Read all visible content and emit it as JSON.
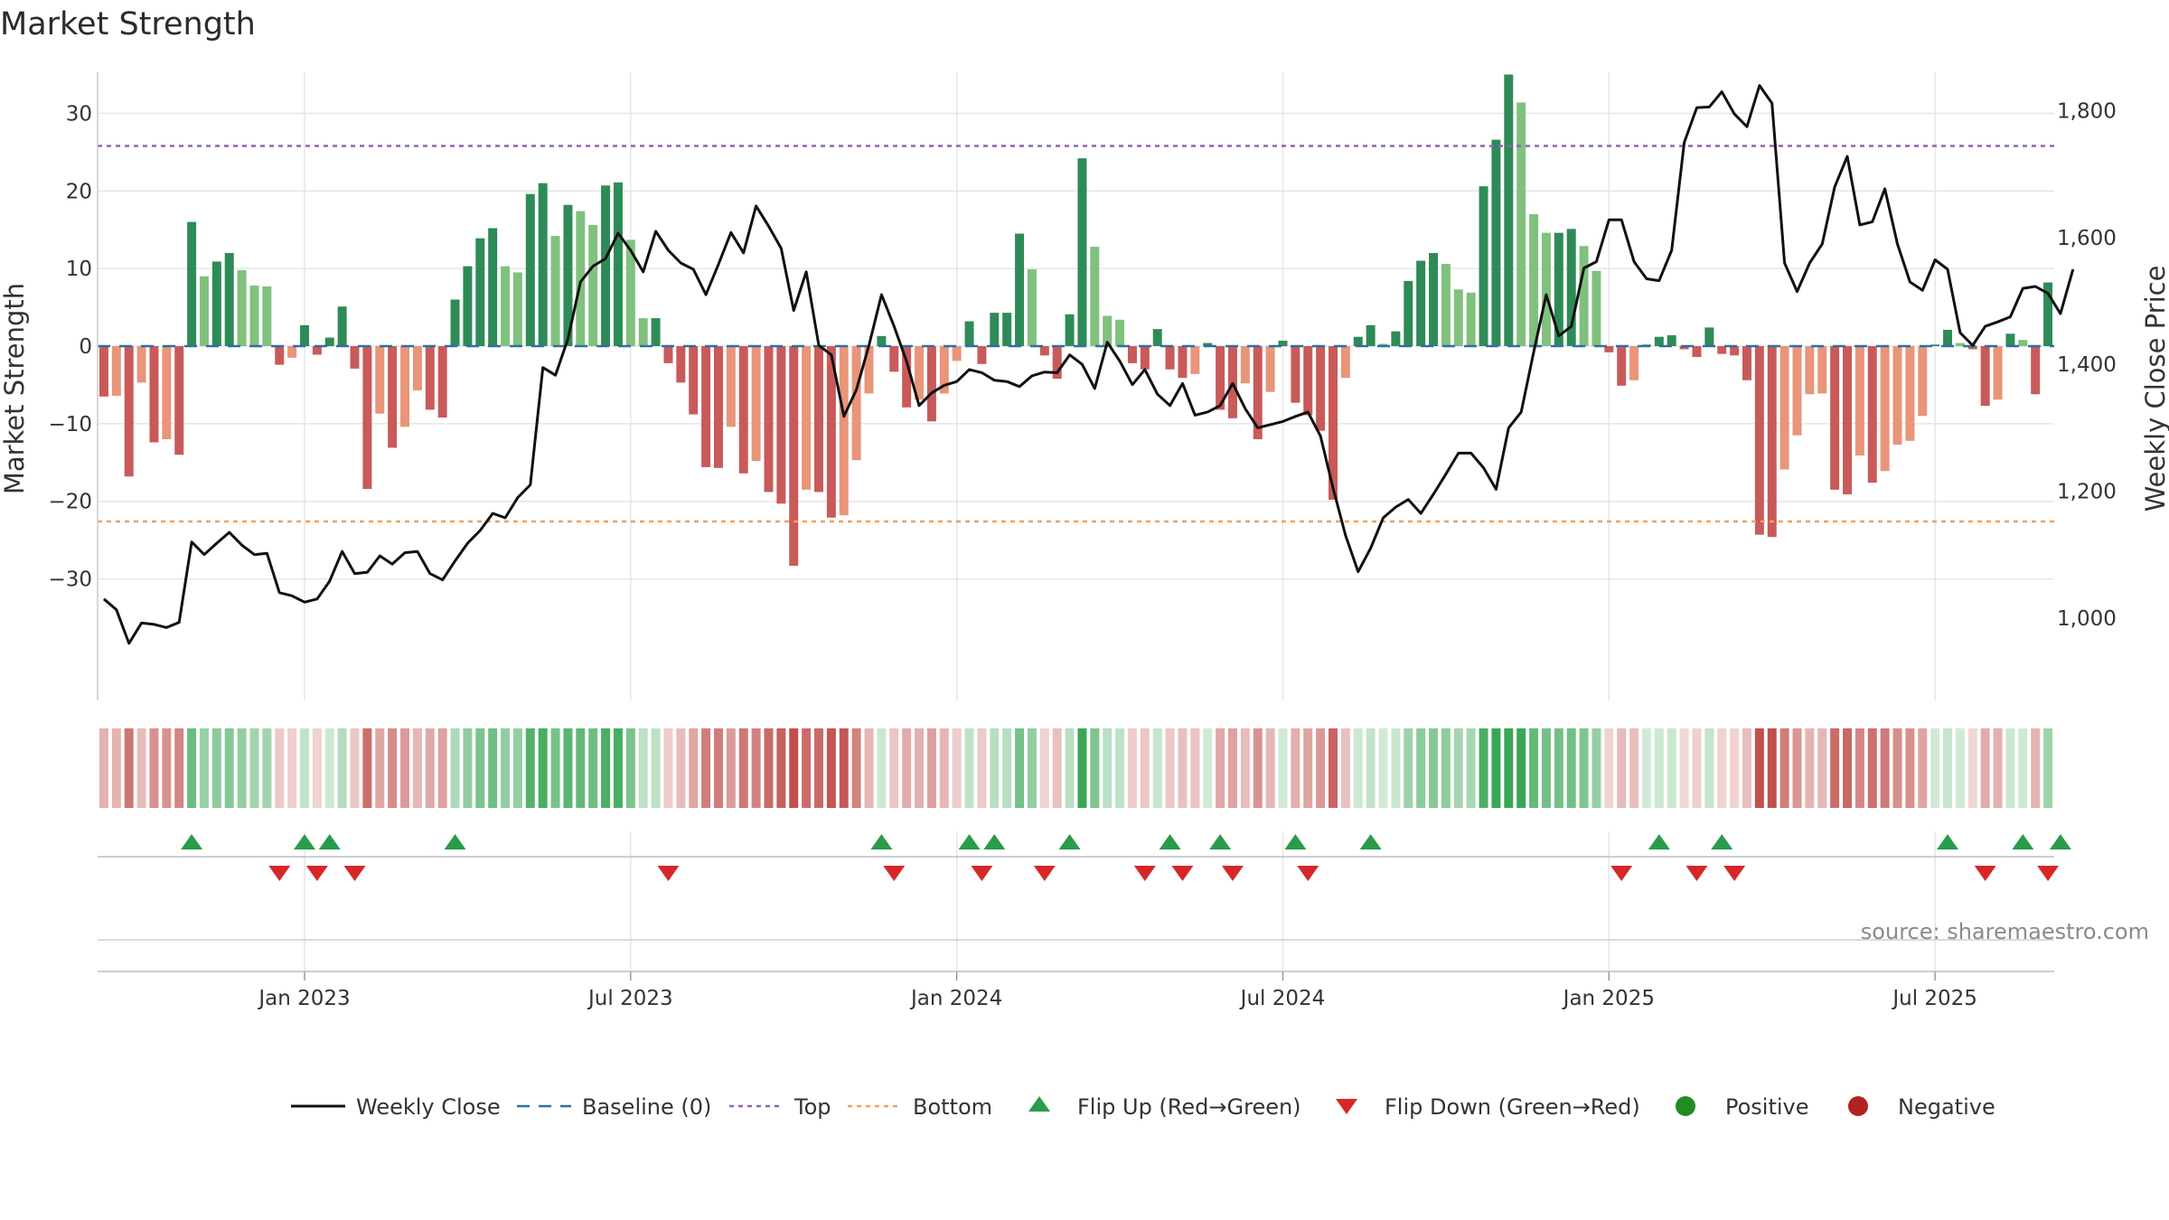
{
  "chart_data": {
    "type": "bar",
    "title": "Market Strength",
    "ylabel_left": "Market Strength",
    "ylabel_right": "Weekly Close Price",
    "source": "source: sharemaestro.com",
    "left_ylim": [
      -37.5,
      37.5
    ],
    "right_ylim": [
      890,
      1895
    ],
    "left_ticks": [
      30,
      20,
      10,
      0,
      -10,
      -20,
      -30
    ],
    "left_tick_labels": [
      "30",
      "20",
      "10",
      "0",
      "−10",
      "−20",
      "−30"
    ],
    "right_ticks": [
      1800,
      1600,
      1400,
      1200,
      1000
    ],
    "right_tick_labels": [
      "1,800",
      "1,600",
      "1,400",
      "1,200",
      "1,000"
    ],
    "x_tick_labels": [
      "Jan 2023",
      "Jul 2023",
      "Jan 2024",
      "Jul 2024",
      "Jan 2025",
      "Jul 2025"
    ],
    "x_tick_weeks": [
      16,
      42,
      68,
      94,
      120,
      146
    ],
    "top_level": 25.8,
    "bottom_level": -22.6,
    "strength": [
      -6.5,
      -6.4,
      -16.8,
      -4.7,
      -12.4,
      -12,
      -14,
      16,
      9,
      10.9,
      12,
      9.8,
      7.8,
      7.7,
      -2.4,
      -1.5,
      2.7,
      -1.1,
      1.1,
      5.1,
      -2.9,
      -18.4,
      -8.7,
      -13.1,
      -10.4,
      -5.7,
      -8.2,
      -9.2,
      6,
      10.3,
      13.9,
      15.2,
      10.3,
      9.5,
      19.6,
      21,
      14.2,
      18.2,
      17.4,
      15.6,
      20.7,
      21.1,
      13.7,
      3.6,
      3.6,
      -2.2,
      -4.7,
      -8.8,
      -15.6,
      -15.7,
      -10.4,
      -16.4,
      -14.8,
      -18.8,
      -20.3,
      -28.3,
      -18.5,
      -18.8,
      -22.1,
      -21.8,
      -14.7,
      -6.1,
      1.3,
      -3.3,
      -7.9,
      -6.9,
      -9.7,
      -6.1,
      -1.9,
      3.2,
      -2.3,
      4.3,
      4.3,
      14.5,
      9.9,
      -1.2,
      -4.2,
      4.1,
      24.2,
      12.8,
      3.9,
      3.4,
      -2.2,
      -3,
      2.2,
      -3,
      -4.1,
      -3.6,
      0.4,
      -8.2,
      -9.3,
      -4.8,
      -12,
      -5.9,
      0.7,
      -7.3,
      -8.9,
      -10.9,
      -19.8,
      -4.1,
      1.2,
      2.7,
      0.3,
      1.9,
      8.4,
      11,
      12,
      10.6,
      7.3,
      6.9,
      20.6,
      26.6,
      35,
      31.4,
      17,
      14.6,
      14.6,
      15.1,
      12.9,
      9.7,
      -0.8,
      -5.1,
      -4.4,
      0.2,
      1.2,
      1.4,
      -0.4,
      -1.4,
      2.4,
      -1,
      -1.2,
      -4.4,
      -24.3,
      -24.6,
      -15.9,
      -11.5,
      -6.2,
      -6.1,
      -18.5,
      -19.1,
      -14.1,
      -17.6,
      -16.1,
      -12.7,
      -12.2,
      -9,
      0.2,
      2.1,
      0.4,
      -0.4,
      -7.7,
      -6.9,
      1.6,
      0.8,
      -6.2,
      8.2
    ],
    "weekly_close": [
      1030,
      1013,
      960,
      992,
      990,
      985,
      993,
      1120,
      1100,
      1118,
      1135,
      1115,
      1100,
      1102,
      1040,
      1035,
      1025,
      1030,
      1058,
      1105,
      1070,
      1072,
      1098,
      1085,
      1103,
      1105,
      1070,
      1060,
      1090,
      1118,
      1138,
      1165,
      1158,
      1190,
      1210,
      1395,
      1383,
      1440,
      1530,
      1555,
      1567,
      1607,
      1580,
      1546,
      1610,
      1580,
      1560,
      1550,
      1510,
      1558,
      1608,
      1576,
      1650,
      1618,
      1583,
      1485,
      1546,
      1430,
      1415,
      1318,
      1360,
      1430,
      1510,
      1460,
      1405,
      1335,
      1355,
      1367,
      1373,
      1392,
      1387,
      1375,
      1373,
      1365,
      1382,
      1388,
      1387,
      1415,
      1400,
      1362,
      1435,
      1405,
      1368,
      1392,
      1353,
      1335,
      1370,
      1320,
      1325,
      1335,
      1370,
      1330,
      1300,
      1305,
      1310,
      1318,
      1325,
      1287,
      1205,
      1130,
      1073,
      1110,
      1158,
      1175,
      1187,
      1165,
      1195,
      1227,
      1260,
      1260,
      1237,
      1203,
      1300,
      1325,
      1420,
      1510,
      1445,
      1460,
      1552,
      1562,
      1628,
      1628,
      1562,
      1535,
      1532,
      1580,
      1750,
      1805,
      1806,
      1830,
      1795,
      1775,
      1840,
      1812,
      1560,
      1515,
      1560,
      1590,
      1680,
      1728,
      1620,
      1625,
      1677,
      1590,
      1530,
      1517,
      1565,
      1550,
      1450,
      1430,
      1460,
      1467,
      1475,
      1520,
      1523,
      1512,
      1480,
      1550
    ],
    "flip_up_weeks": [
      7,
      16,
      18,
      28,
      62,
      69,
      71,
      77,
      85,
      89,
      95,
      101,
      124,
      129,
      147,
      153,
      156
    ],
    "flip_down_weeks": [
      14,
      17,
      20,
      45,
      63,
      70,
      75,
      83,
      86,
      90,
      96,
      121,
      127,
      130,
      150,
      155
    ],
    "colors": {
      "strong_green": "#2e8b57",
      "light_green": "#80c17e",
      "strong_red": "#c95a5a",
      "light_red": "#e8957a",
      "close_line": "#111111",
      "baseline": "#2f6f9f",
      "top_line": "#8f63b8",
      "bottom_line": "#f0a060",
      "flip_up": "#2a9b4a",
      "flip_down": "#d62728",
      "positive": "#228b22",
      "negative": "#b22222"
    },
    "legend": [
      {
        "label": "Weekly Close",
        "kind": "line"
      },
      {
        "label": "Baseline (0)",
        "kind": "dash"
      },
      {
        "label": "Top",
        "kind": "dot-purple"
      },
      {
        "label": "Bottom",
        "kind": "dot-orange"
      },
      {
        "label": "Flip Up (Red→Green)",
        "kind": "tri-up"
      },
      {
        "label": "Flip Down (Green→Red)",
        "kind": "tri-down"
      },
      {
        "label": "Positive",
        "kind": "circle-pos"
      },
      {
        "label": "Negative",
        "kind": "circle-neg"
      }
    ]
  }
}
